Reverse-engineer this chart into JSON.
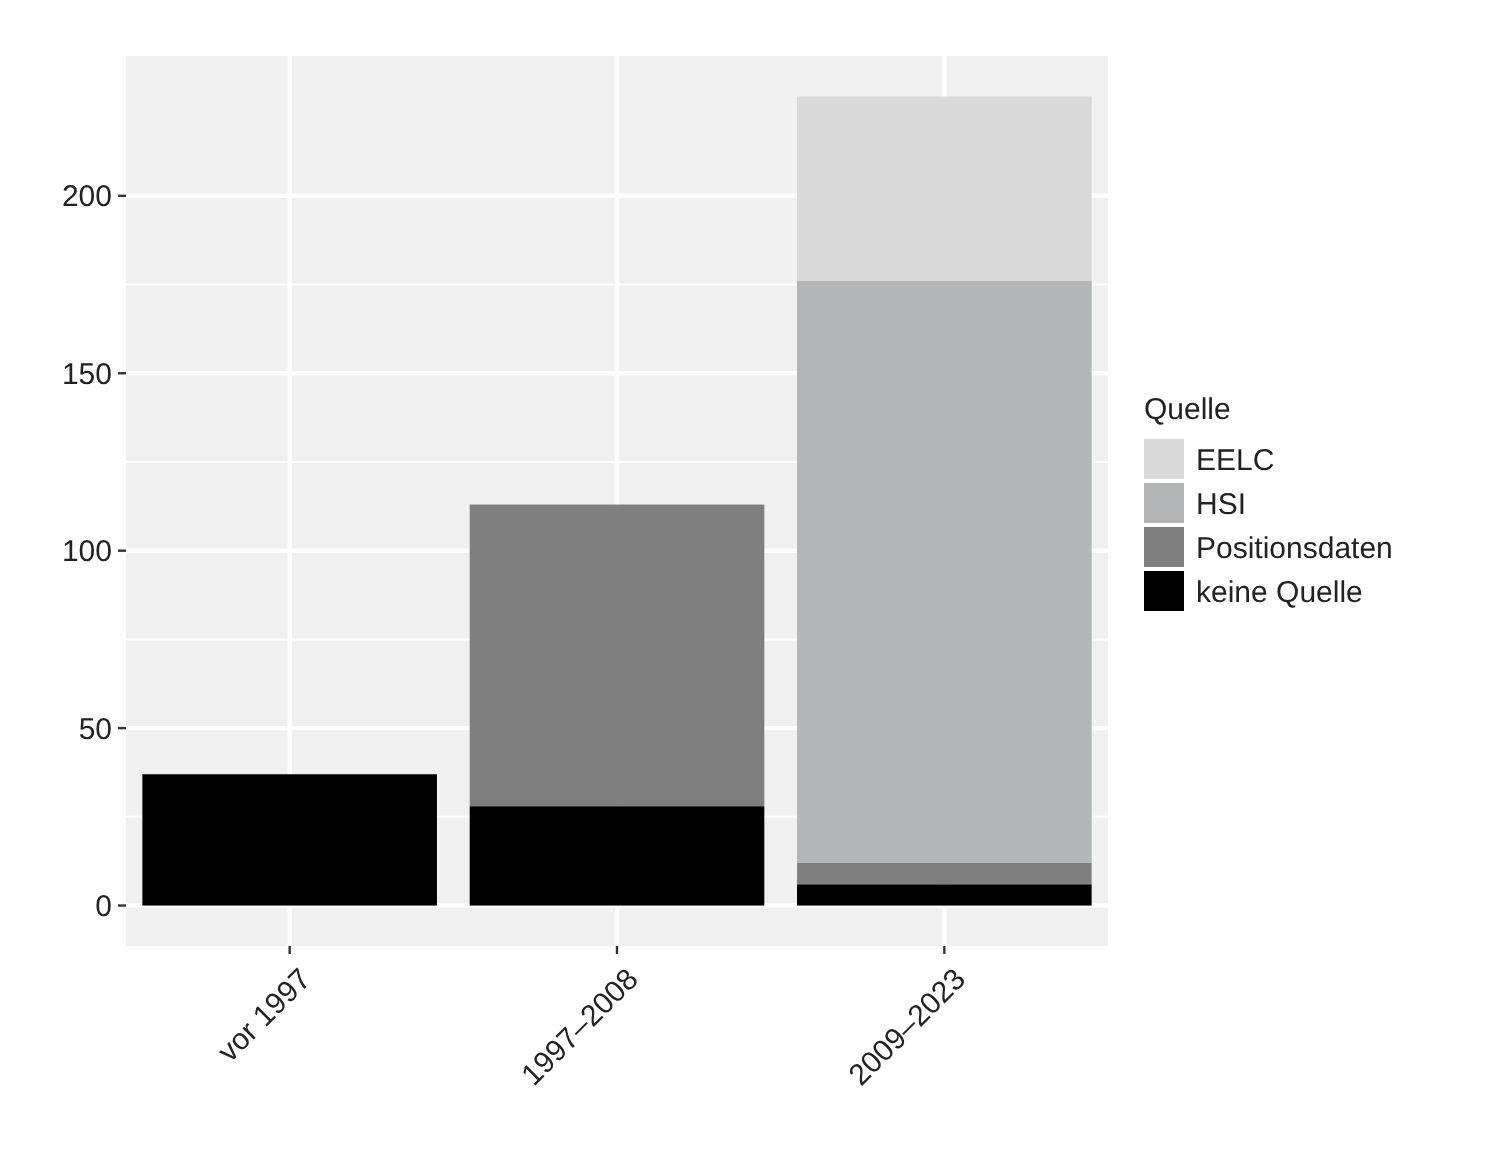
{
  "chart_data": {
    "type": "bar",
    "stacked": true,
    "categories": [
      "vor 1997",
      "1997–2008",
      "2009–2023"
    ],
    "series": [
      {
        "name": "keine Quelle",
        "color": "#000000",
        "values": [
          37,
          28,
          6
        ]
      },
      {
        "name": "Positionsdaten",
        "color": "#7f7f7f",
        "values": [
          null,
          85,
          6
        ]
      },
      {
        "name": "HSI",
        "color": "#b4b5b6",
        "values": [
          null,
          null,
          164
        ]
      },
      {
        "name": "EELC",
        "color": "#d8d9d8",
        "values": [
          null,
          null,
          52
        ]
      }
    ],
    "legend_title": "Quelle",
    "legend": "right",
    "ylim": [
      -11.4,
      239.4
    ],
    "yticks": [
      0,
      50,
      100,
      150,
      200
    ],
    "grid": true
  }
}
